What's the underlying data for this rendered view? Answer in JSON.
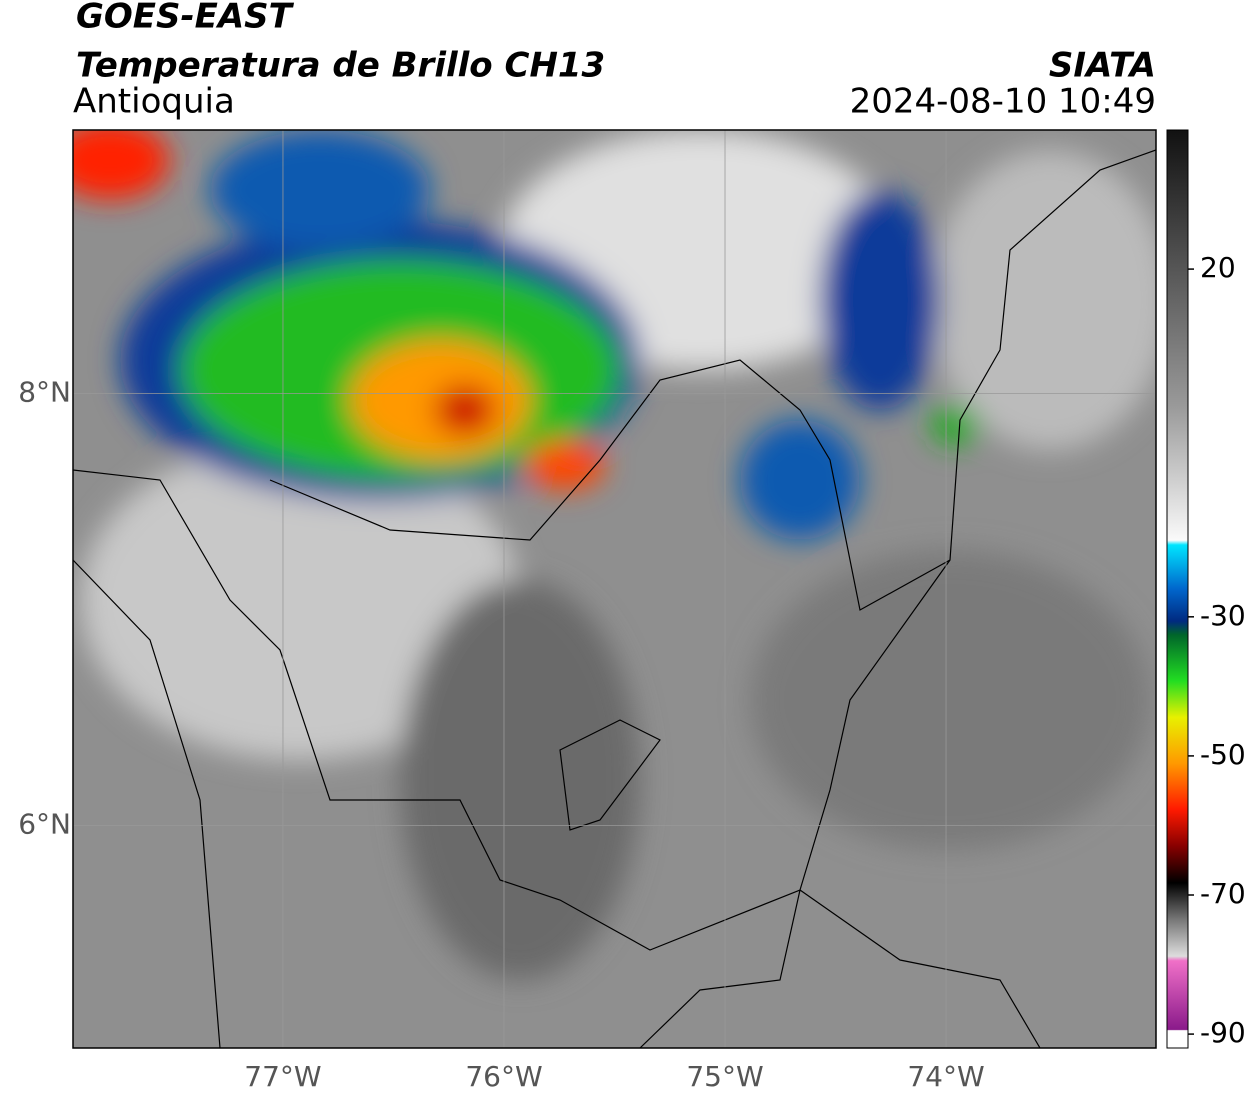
{
  "header": {
    "title": "GOES-EAST",
    "subtitle": "Temperatura de Brillo CH13",
    "region": "Antioquia",
    "source": "SIATA",
    "datetime": "2024-08-10 10:49"
  },
  "map": {
    "xlim": [
      -77.95,
      -73.05
    ],
    "ylim": [
      4.97,
      9.22
    ],
    "xticks": [
      {
        "value": -77,
        "label": "77°W"
      },
      {
        "value": -76,
        "label": "76°W"
      },
      {
        "value": -75,
        "label": "75°W"
      },
      {
        "value": -74,
        "label": "74°W"
      }
    ],
    "yticks": [
      {
        "value": 8,
        "label": "8°N"
      },
      {
        "value": 6,
        "label": "6°N"
      }
    ],
    "grid": true
  },
  "colorbar": {
    "lim": [
      -92,
      40
    ],
    "ticks": [
      20,
      -30,
      -50,
      -70,
      -90
    ]
  }
}
